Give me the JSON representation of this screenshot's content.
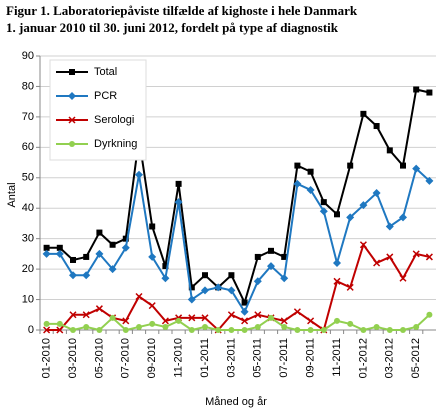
{
  "chart_data": {
    "type": "line",
    "title": [
      "Figur 1. Laboratoriepåviste tilfælde af kighoste i hele Danmark",
      "1. januar 2010 til 30. juni 2012, fordelt på type af diagnostik"
    ],
    "x_label": "Måned og år",
    "y_label": "Antal",
    "categories": [
      "01-2010",
      null,
      "03-2010",
      null,
      "05-2010",
      null,
      "07-2010",
      null,
      "09-2010",
      null,
      "11-2010",
      null,
      "01-2011",
      null,
      "03-2011",
      null,
      "05-2011",
      null,
      "07-2011",
      null,
      "09-2011",
      null,
      "11-2011",
      null,
      "01-2012",
      null,
      "03-2012",
      null,
      "05-2012",
      null
    ],
    "ylim": [
      0,
      90
    ],
    "yticks": [
      0,
      10,
      20,
      30,
      40,
      50,
      60,
      70,
      80,
      90
    ],
    "grid": true,
    "legend": "upper left",
    "series": [
      {
        "name": "Total",
        "color": "#000000",
        "marker": "square",
        "values": [
          27,
          27,
          23,
          24,
          32,
          28,
          30,
          63,
          34,
          21,
          48,
          14,
          18,
          14,
          18,
          9,
          24,
          26,
          24,
          54,
          52,
          42,
          38,
          54,
          71,
          67,
          59,
          54,
          79,
          78
        ]
      },
      {
        "name": "PCR",
        "color": "#1f78c1",
        "marker": "diamond",
        "values": [
          25,
          25,
          18,
          18,
          25,
          20,
          27,
          51,
          24,
          17,
          42,
          10,
          13,
          14,
          13,
          6,
          16,
          21,
          17,
          48,
          46,
          39,
          22,
          37,
          41,
          45,
          34,
          37,
          53,
          49
        ]
      },
      {
        "name": "Serologi",
        "color": "#c00000",
        "marker": "x",
        "values": [
          0,
          0,
          5,
          5,
          7,
          4,
          3,
          11,
          8,
          3,
          4,
          4,
          4,
          0,
          5,
          3,
          5,
          4,
          3,
          6,
          3,
          0,
          16,
          14,
          28,
          22,
          24,
          17,
          25,
          24
        ]
      },
      {
        "name": "Dyrkning",
        "color": "#92d050",
        "marker": "circle",
        "values": [
          2,
          2,
          0,
          1,
          0,
          4,
          0,
          1,
          2,
          1,
          3,
          0,
          1,
          0,
          0,
          0,
          1,
          4,
          1,
          0,
          0,
          0,
          3,
          2,
          0,
          1,
          0,
          0,
          1,
          5
        ]
      }
    ]
  }
}
